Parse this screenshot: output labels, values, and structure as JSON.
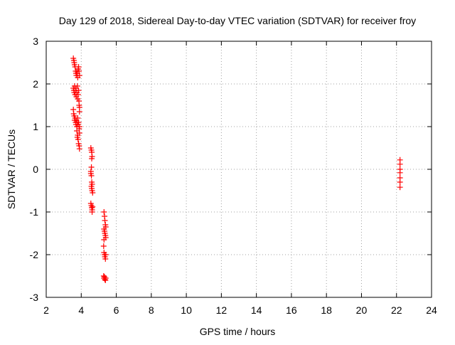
{
  "chart_data": {
    "type": "scatter",
    "title": "Day 129 of 2018, Sidereal Day-to-day VTEC variation (SDTVAR) for receiver froy",
    "xlabel": "GPS time / hours",
    "ylabel": "SDTVAR / TECUs",
    "xlim": [
      2,
      24
    ],
    "ylim": [
      -3,
      3
    ],
    "xticks": [
      2,
      4,
      6,
      8,
      10,
      12,
      14,
      16,
      18,
      20,
      22,
      24
    ],
    "yticks": [
      -3,
      -2,
      -1,
      0,
      1,
      2,
      3
    ],
    "xtick_labels": [
      "2",
      "4",
      "6",
      "8",
      "10",
      "12",
      "14",
      "16",
      "18",
      "20",
      "22",
      "24"
    ],
    "ytick_labels": [
      "-3",
      "-2",
      "-1",
      "0",
      "1",
      "2",
      "3"
    ],
    "grid": true,
    "marker": "+",
    "marker_color": "#ff0000",
    "series": [
      {
        "name": "SDTVAR",
        "points": [
          [
            3.55,
            2.6
          ],
          [
            3.58,
            2.55
          ],
          [
            3.6,
            2.5
          ],
          [
            3.62,
            2.45
          ],
          [
            3.65,
            2.4
          ],
          [
            3.68,
            2.3
          ],
          [
            3.7,
            2.25
          ],
          [
            3.72,
            2.2
          ],
          [
            3.75,
            2.3
          ],
          [
            3.78,
            2.25
          ],
          [
            3.8,
            2.15
          ],
          [
            3.83,
            2.35
          ],
          [
            3.85,
            2.4
          ],
          [
            3.87,
            2.3
          ],
          [
            3.9,
            2.2
          ],
          [
            3.55,
            1.9
          ],
          [
            3.58,
            1.85
          ],
          [
            3.6,
            1.8
          ],
          [
            3.62,
            1.95
          ],
          [
            3.65,
            1.75
          ],
          [
            3.68,
            1.85
          ],
          [
            3.7,
            1.9
          ],
          [
            3.72,
            1.7
          ],
          [
            3.75,
            1.8
          ],
          [
            3.78,
            1.95
          ],
          [
            3.8,
            1.65
          ],
          [
            3.82,
            1.75
          ],
          [
            3.85,
            1.85
          ],
          [
            3.87,
            1.6
          ],
          [
            3.88,
            1.5
          ],
          [
            3.9,
            1.45
          ],
          [
            3.9,
            1.35
          ],
          [
            3.55,
            1.4
          ],
          [
            3.57,
            1.3
          ],
          [
            3.6,
            1.25
          ],
          [
            3.62,
            1.15
          ],
          [
            3.65,
            1.2
          ],
          [
            3.68,
            1.1
          ],
          [
            3.7,
            1.05
          ],
          [
            3.72,
            1.15
          ],
          [
            3.75,
            1.0
          ],
          [
            3.78,
            1.1
          ],
          [
            3.8,
            1.2
          ],
          [
            3.82,
            1.05
          ],
          [
            3.85,
            1.1
          ],
          [
            3.88,
            0.95
          ],
          [
            3.9,
            0.85
          ],
          [
            3.9,
            1.0
          ],
          [
            3.75,
            0.9
          ],
          [
            3.78,
            0.75
          ],
          [
            3.8,
            0.8
          ],
          [
            3.82,
            0.7
          ],
          [
            3.85,
            0.6
          ],
          [
            3.88,
            0.55
          ],
          [
            3.9,
            0.48
          ],
          [
            4.55,
            0.5
          ],
          [
            4.58,
            0.45
          ],
          [
            4.6,
            0.4
          ],
          [
            4.62,
            0.3
          ],
          [
            4.6,
            0.25
          ],
          [
            4.58,
            0.05
          ],
          [
            4.55,
            -0.05
          ],
          [
            4.55,
            -0.1
          ],
          [
            4.58,
            -0.15
          ],
          [
            4.6,
            -0.3
          ],
          [
            4.62,
            -0.35
          ],
          [
            4.58,
            -0.4
          ],
          [
            4.6,
            -0.45
          ],
          [
            4.62,
            -0.5
          ],
          [
            4.65,
            -0.55
          ],
          [
            4.55,
            -0.8
          ],
          [
            4.58,
            -0.85
          ],
          [
            4.6,
            -0.9
          ],
          [
            4.62,
            -0.95
          ],
          [
            4.65,
            -0.88
          ],
          [
            4.62,
            -1.0
          ],
          [
            5.3,
            -1.0
          ],
          [
            5.33,
            -1.1
          ],
          [
            5.35,
            -1.2
          ],
          [
            5.38,
            -1.3
          ],
          [
            5.4,
            -1.35
          ],
          [
            5.3,
            -1.4
          ],
          [
            5.33,
            -1.45
          ],
          [
            5.35,
            -1.5
          ],
          [
            5.38,
            -1.55
          ],
          [
            5.4,
            -1.6
          ],
          [
            5.3,
            -1.65
          ],
          [
            5.28,
            -1.8
          ],
          [
            5.3,
            -1.95
          ],
          [
            5.33,
            -2.0
          ],
          [
            5.35,
            -2.05
          ],
          [
            5.38,
            -2.1
          ],
          [
            5.4,
            -2.0
          ],
          [
            5.28,
            -2.5
          ],
          [
            5.3,
            -2.55
          ],
          [
            5.33,
            -2.52
          ],
          [
            5.35,
            -2.58
          ],
          [
            5.38,
            -2.6
          ],
          [
            5.4,
            -2.55
          ],
          [
            22.2,
            0.22
          ],
          [
            22.2,
            0.12
          ],
          [
            22.2,
            0.0
          ],
          [
            22.2,
            -0.08
          ],
          [
            22.2,
            -0.2
          ],
          [
            22.2,
            -0.3
          ],
          [
            22.2,
            -0.42
          ]
        ]
      }
    ]
  }
}
